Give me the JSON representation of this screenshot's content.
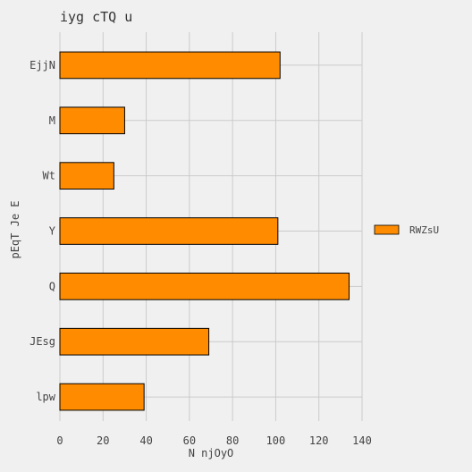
{
  "chart_data": {
    "type": "bar",
    "orientation": "horizontal",
    "title": "iyg cTQ u",
    "xlabel": "N njOyO",
    "ylabel": "pEqT Je E",
    "categories": [
      "EjjN",
      "M",
      "Wt",
      "Y",
      "Q",
      "JEsg",
      "lpw"
    ],
    "series": [
      {
        "name": "RWZsU",
        "values": [
          102,
          30,
          25,
          101,
          134,
          69,
          39
        ]
      }
    ],
    "xlim": [
      0,
      140
    ],
    "xticks": [
      "0",
      "20",
      "40",
      "60",
      "80",
      "100",
      "120",
      "140"
    ],
    "grid": true,
    "legend": "right",
    "colors": {
      "bar": "#ff8c00",
      "bar_edge": "#000000",
      "grid": "#cbcbcb",
      "background": "#f0f0f0",
      "text": "#444444"
    }
  }
}
